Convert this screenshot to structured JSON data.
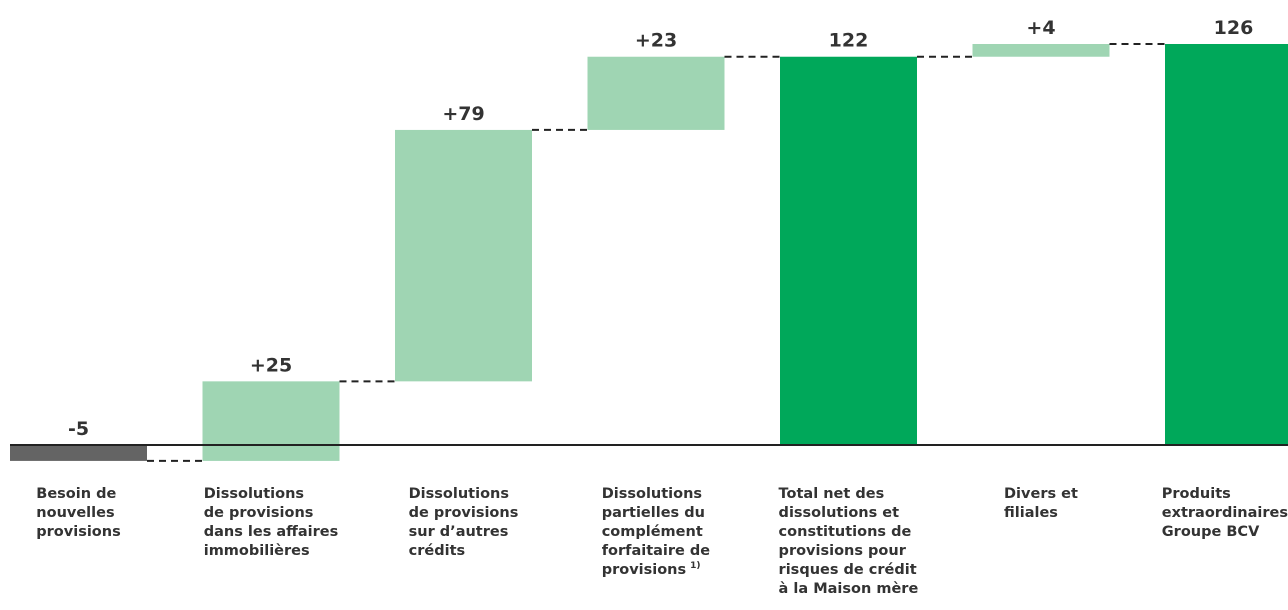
{
  "chart_data": {
    "type": "waterfall",
    "categories": [
      [
        "Besoin de",
        "nouvelles",
        "provisions"
      ],
      [
        "Dissolutions",
        "de provisions",
        "dans les affaires",
        "immobilières"
      ],
      [
        "Dissolutions",
        "de provisions",
        "sur d’autres",
        "crédits"
      ],
      [
        "Dissolutions",
        "partielles du",
        "complément",
        "forfaitaire de",
        "provisions"
      ],
      [
        "Total net des",
        "dissolutions et",
        "constitutions de",
        "provisions pour",
        "risques de crédit",
        "à la Maison mère"
      ],
      [
        "Divers et",
        "filiales"
      ],
      [
        "Produits",
        "extraordinaires",
        "Groupe BCV"
      ]
    ],
    "annotations": [
      {
        "category": 3,
        "text": "1)"
      }
    ],
    "values": [
      -5,
      25,
      79,
      23,
      122,
      4,
      126
    ],
    "value_labels": [
      "-5",
      "+25",
      "+79",
      "+23",
      "122",
      "+4",
      "126"
    ],
    "totals": [
      false,
      false,
      false,
      false,
      true,
      false,
      true
    ],
    "colors": {
      "decrease": "#646464",
      "increase": "#9fd5b3",
      "total": "#00a85a"
    }
  }
}
